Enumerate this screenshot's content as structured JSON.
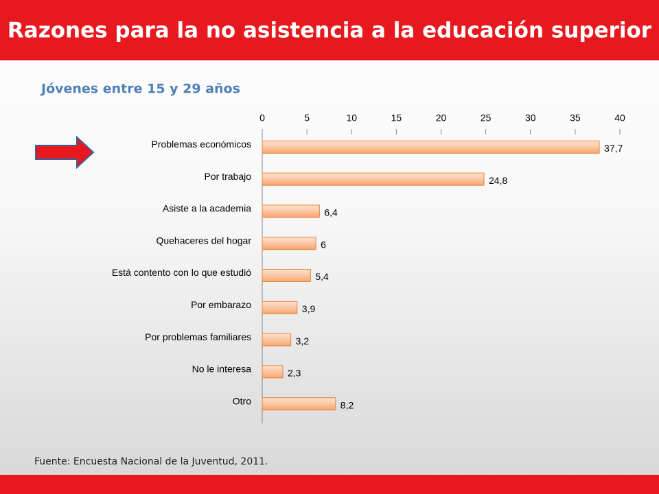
{
  "chart_data": {
    "type": "bar",
    "orientation": "horizontal",
    "title": "Razones para la no asistencia a la educación superior",
    "subtitle": "Jóvenes entre 15 y 29 años",
    "source": "Fuente: Encuesta Nacional de la Juventud, 2011.",
    "categories": [
      "Problemas económicos",
      "Por trabajo",
      "Asiste a la academia",
      "Quehaceres del hogar",
      "Está contento con lo que estudió",
      "Por embarazo",
      "Por problemas familiares",
      "No le interesa",
      "Otro"
    ],
    "values": [
      37.7,
      24.8,
      6.4,
      6,
      5.4,
      3.9,
      3.2,
      2.3,
      8.2
    ],
    "value_labels": [
      "37,7",
      "24,8",
      "6,4",
      "6",
      "5,4",
      "3,9",
      "3,2",
      "2,3",
      "8,2"
    ],
    "color": "#fbc7a3",
    "xlim": [
      0,
      40
    ],
    "xticks": [
      0,
      5,
      10,
      15,
      20,
      25,
      30,
      35,
      40
    ],
    "grid": false
  }
}
